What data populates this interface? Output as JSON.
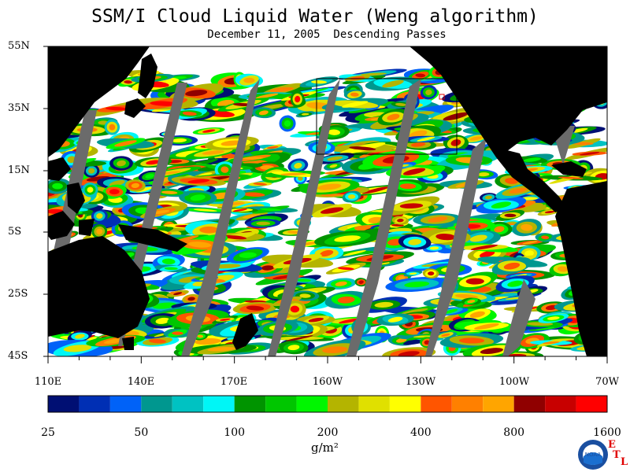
{
  "title": "SSM/I Cloud Liquid Water (Weng algorithm)",
  "subtitle": "December 11, 2005  Descending Passes",
  "lat_labels": [
    "55N",
    "35N",
    "15N",
    "5S",
    "25S",
    "45S"
  ],
  "lon_labels": [
    "110E",
    "140E",
    "170E",
    "160W",
    "130W",
    "100W",
    "70W"
  ],
  "colorbar": {
    "colors": [
      "#000f73",
      "#002fb4",
      "#0062f8",
      "#00978f",
      "#00c2c2",
      "#00f6f6",
      "#009400",
      "#00c600",
      "#00f600",
      "#b4b400",
      "#e0e000",
      "#ffff00",
      "#ff5500",
      "#ff8000",
      "#ffa500",
      "#900000",
      "#c80000",
      "#ff0000"
    ],
    "labels": [
      "25",
      "50",
      "100",
      "200",
      "400",
      "800",
      "1600"
    ],
    "units": "g/m²"
  },
  "logo": {
    "text": "NOAA",
    "etl": [
      "E",
      "T",
      "L"
    ]
  },
  "colors": {
    "land": "#000000",
    "gap": "#6b6b6b",
    "clear": "#ffffff"
  }
}
